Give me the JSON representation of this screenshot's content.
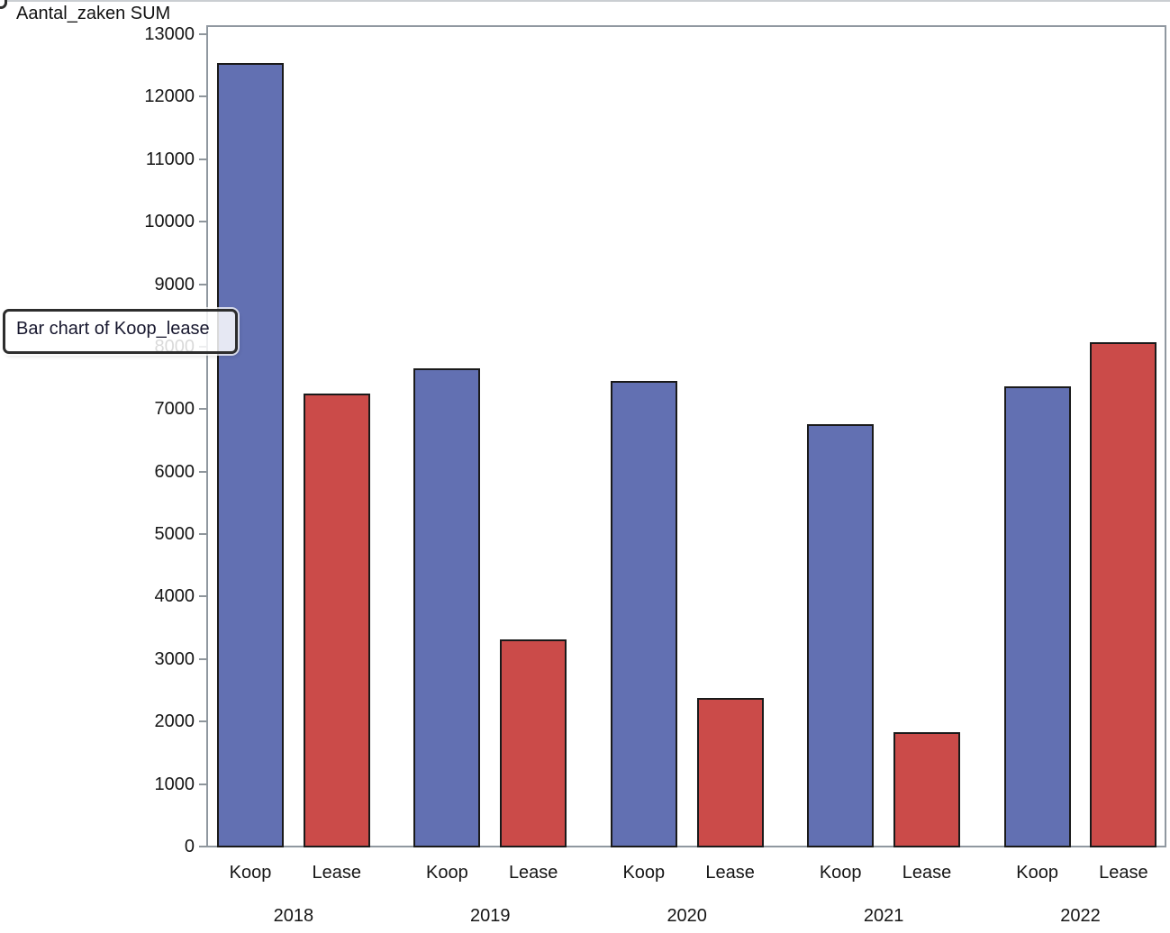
{
  "window": {
    "tooltip_label": "Bar chart of Koop_lease"
  },
  "chart_data": {
    "type": "bar",
    "title": "Bar chart of Koop_lease",
    "y_axis_title": "Aantal_zaken SUM",
    "categories": [
      "2018",
      "2019",
      "2020",
      "2021",
      "2022"
    ],
    "series": [
      {
        "name": "Koop",
        "color": "#6270b2",
        "values": [
          12540,
          7650,
          7450,
          6760,
          7365
        ]
      },
      {
        "name": "Lease",
        "color": "#cb4b49",
        "values": [
          7250,
          3315,
          2380,
          1830,
          8070
        ]
      }
    ],
    "ylim": [
      0,
      13000
    ],
    "y_tick_step": 1000,
    "grid": false,
    "legend": "none",
    "bar_border_color": "#1a1a1a",
    "frame_color": "#9098a0"
  }
}
